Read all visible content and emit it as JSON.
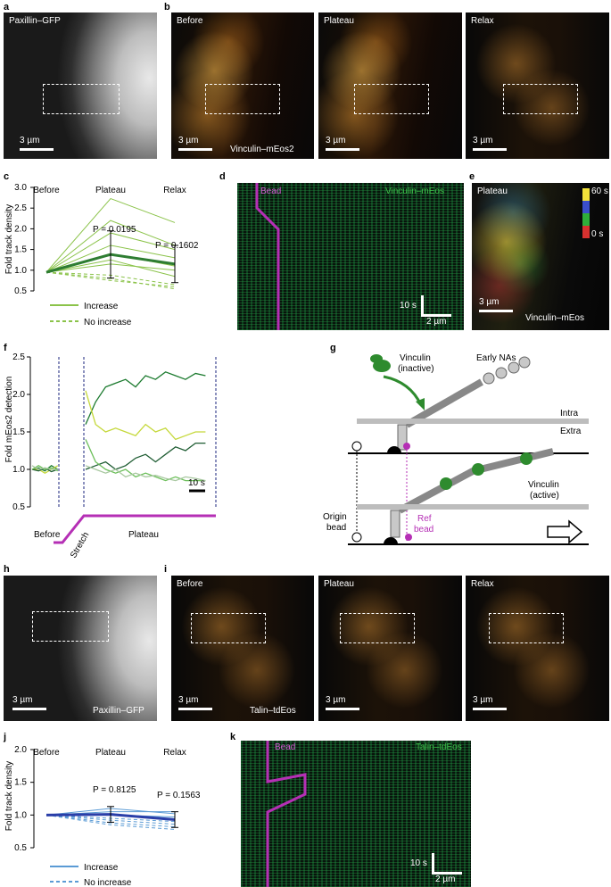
{
  "panels": {
    "a": {
      "letter": "a",
      "title": "Paxillin–GFP",
      "scale": "3 µm"
    },
    "b": {
      "letter": "b",
      "before": "Before",
      "plateau": "Plateau",
      "relax": "Relax",
      "protein": "Vinculin–mEos2",
      "scale": "3 µm"
    },
    "c": {
      "letter": "c",
      "ylabel": "Fold track density",
      "cats": [
        "Before",
        "Plateau",
        "Relax"
      ],
      "p1": "P = 0.0195",
      "p2": "P = 0.1602",
      "legend_increase": "Increase",
      "legend_noincrease": "No increase",
      "yticks": [
        "0.5",
        "1.0",
        "1.5",
        "2.0",
        "2.5",
        "3.0"
      ]
    },
    "d": {
      "letter": "d",
      "bead": "Bead",
      "protein": "Vinculin–mEos",
      "time": "10 s",
      "scale": "2 µm"
    },
    "e": {
      "letter": "e",
      "state": "Plateau",
      "protein": "Vinculin–mEos",
      "scale": "3 µm",
      "cbar_top": "60 s",
      "cbar_bottom": "0 s"
    },
    "f": {
      "letter": "f",
      "ylabel": "Fold mEos2 detection",
      "yticks": [
        "0.5",
        "1.0",
        "1.5",
        "2.0",
        "2.5"
      ],
      "time": "10 s",
      "before": "Before",
      "stretch": "Stretch",
      "plateau": "Plateau"
    },
    "g": {
      "letter": "g",
      "vinculin_inactive": "Vinculin\n(inactive)",
      "early": "Early NAs",
      "intra": "Intra",
      "extra": "Extra",
      "vinculin_active": "Vinculin\n(active)",
      "origin": "Origin\nbead",
      "ref": "Ref\nbead"
    },
    "h": {
      "letter": "h",
      "title": "Paxillin–GFP",
      "scale": "3 µm"
    },
    "i": {
      "letter": "i",
      "before": "Before",
      "plateau": "Plateau",
      "relax": "Relax",
      "protein": "Talin–tdEos",
      "scale": "3 µm"
    },
    "j": {
      "letter": "j",
      "ylabel": "Fold track density",
      "cats": [
        "Before",
        "Plateau",
        "Relax"
      ],
      "p1": "P = 0.8125",
      "p2": "P = 0.1563",
      "legend_increase": "Increase",
      "legend_noincrease": "No increase",
      "yticks": [
        "0.5",
        "1.0",
        "1.5",
        "2.0"
      ]
    },
    "k": {
      "letter": "k",
      "bead": "Bead",
      "protein": "Talin–tdEos",
      "time": "10 s",
      "scale": "2 µm"
    }
  },
  "colors": {
    "green_dark": "#2e7d32",
    "green_light": "#8bc34a",
    "magenta": "#b52fb5",
    "blue_dark": "#2a3ea8",
    "blue_light": "#5b9bd5"
  },
  "chart_data": [
    {
      "type": "line",
      "id": "c",
      "title": "",
      "xlabel": "",
      "ylabel": "Fold track density",
      "categories": [
        "Before",
        "Plateau",
        "Relax"
      ],
      "ylim": [
        0.5,
        3.0
      ],
      "series": [
        {
          "style": "mean",
          "values": [
            0.95,
            1.38,
            1.15
          ],
          "err": [
            0,
            0.57,
            0.45
          ]
        },
        {
          "style": "increase",
          "values": [
            0.95,
            2.73,
            2.15
          ]
        },
        {
          "style": "increase",
          "values": [
            0.95,
            2.2,
            1.6
          ]
        },
        {
          "style": "increase",
          "values": [
            0.95,
            1.9,
            1.5
          ]
        },
        {
          "style": "increase",
          "values": [
            0.95,
            1.6,
            1.3
          ]
        },
        {
          "style": "increase",
          "values": [
            0.95,
            1.4,
            1.1
          ]
        },
        {
          "style": "increase",
          "values": [
            0.95,
            1.25,
            0.85
          ]
        },
        {
          "style": "increase",
          "values": [
            0.95,
            1.15,
            1.0
          ]
        },
        {
          "style": "noincrease",
          "values": [
            0.95,
            0.88,
            0.65
          ]
        },
        {
          "style": "noincrease",
          "values": [
            0.95,
            0.8,
            0.55
          ]
        },
        {
          "style": "noincrease",
          "values": [
            0.95,
            0.75,
            0.6
          ]
        }
      ]
    },
    {
      "type": "line",
      "id": "f",
      "xlabel": "",
      "ylabel": "Fold mEos2 detection",
      "ylim": [
        0.5,
        2.5
      ],
      "series": [
        {
          "color": "#1b7a2e",
          "values": [
            1.0,
            1.02,
            0.98,
            1.05,
            1.0,
            null,
            1.6,
            1.9,
            2.1,
            2.15,
            2.2,
            2.1,
            2.25,
            2.2,
            2.3,
            2.25,
            2.2,
            2.28,
            2.25
          ]
        },
        {
          "color": "#c5d83a",
          "values": [
            1.0,
            1.0,
            0.95,
            1.0,
            1.05,
            null,
            2.05,
            1.6,
            1.5,
            1.55,
            1.5,
            1.45,
            1.6,
            1.5,
            1.55,
            1.4,
            1.45,
            1.5,
            1.5
          ]
        },
        {
          "color": "#1e5c32",
          "values": [
            1.0,
            0.98,
            1.02,
            0.97,
            1.0,
            null,
            1.0,
            1.05,
            1.1,
            1.0,
            1.05,
            1.15,
            1.2,
            1.1,
            1.2,
            1.3,
            1.25,
            1.35,
            1.35
          ]
        },
        {
          "color": "#6cbf5a",
          "values": [
            1.0,
            1.05,
            1.0,
            1.02,
            0.98,
            null,
            1.4,
            1.1,
            1.0,
            0.95,
            1.0,
            0.9,
            0.95,
            0.9,
            0.85,
            0.9,
            0.85,
            0.85,
            0.85
          ]
        },
        {
          "color": "#a8c8a0",
          "values": [
            1.05,
            1.0,
            1.02,
            1.0,
            1.0,
            null,
            1.05,
            1.0,
            0.95,
            1.0,
            0.9,
            0.95,
            0.9,
            0.92,
            0.88,
            0.85,
            0.9,
            0.88,
            0.85
          ]
        }
      ]
    },
    {
      "type": "line",
      "id": "j",
      "ylabel": "Fold track density",
      "categories": [
        "Before",
        "Plateau",
        "Relax"
      ],
      "ylim": [
        0.5,
        2.0
      ],
      "series": [
        {
          "style": "mean",
          "values": [
            1.0,
            1.01,
            0.93
          ],
          "err": [
            0,
            0.12,
            0.12
          ]
        },
        {
          "style": "increase",
          "values": [
            1.0,
            1.1,
            1.02
          ]
        },
        {
          "style": "increase",
          "values": [
            1.0,
            1.05,
            1.05
          ]
        },
        {
          "style": "increase",
          "values": [
            1.0,
            1.0,
            0.97
          ]
        },
        {
          "style": "noincrease",
          "values": [
            1.0,
            0.95,
            0.9
          ]
        },
        {
          "style": "noincrease",
          "values": [
            1.0,
            0.88,
            0.82
          ]
        },
        {
          "style": "noincrease",
          "values": [
            1.0,
            0.85,
            0.78
          ]
        },
        {
          "style": "noincrease",
          "values": [
            1.0,
            0.92,
            0.86
          ]
        }
      ]
    }
  ]
}
